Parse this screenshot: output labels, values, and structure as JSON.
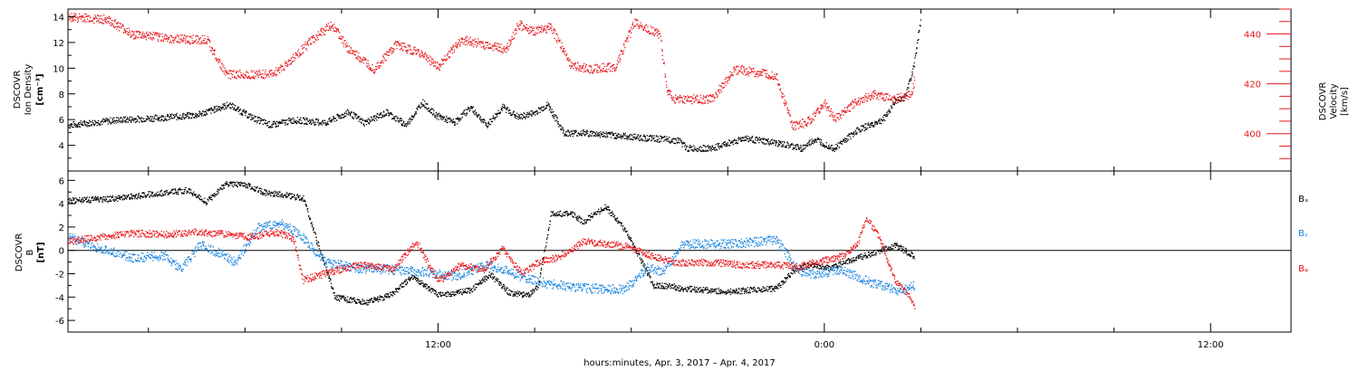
{
  "x_axis": {
    "label": "hours:minutes, Apr.  3, 2017 – Apr.  4, 2017",
    "range_hours": [
      -23.5,
      14.5
    ],
    "tick_labels": [
      {
        "hour": -12,
        "text": "12:00"
      },
      {
        "hour": 0,
        "text": "0:00"
      },
      {
        "hour": 12,
        "text": "12:00"
      }
    ]
  },
  "colors": {
    "black": "#000000",
    "red": "#e8191e",
    "blue": "#1c86e0"
  },
  "panels": {
    "top": {
      "left_label": [
        "DSCOVR",
        "Ion  Density",
        "[cm⁻³]"
      ],
      "right_label": [
        "DSCOVR",
        "Velocity",
        "[km/s]"
      ],
      "left_ylim": [
        2,
        14.6
      ],
      "left_ticks": [
        4,
        6,
        8,
        10,
        12,
        14
      ],
      "right_ylim": [
        385,
        450
      ],
      "right_ticks": [
        400,
        420,
        440
      ]
    },
    "bottom": {
      "left_label": [
        "DSCOVR",
        "B",
        "[nT]"
      ],
      "ylim": [
        -7,
        6.8
      ],
      "ticks": [
        -6,
        -4,
        -2,
        0,
        2,
        4,
        6
      ],
      "legend": [
        "Bₓ",
        "Bᵧ",
        "Bᵩ"
      ]
    }
  },
  "chart_data": [
    {
      "type": "scatter",
      "panel": "top",
      "xlabel": "hours:minutes, Apr.  3, 2017 – Apr.  4, 2017",
      "x_units": "hours relative to 0:00 Apr. 4, 2017",
      "ylim_left": [
        2,
        14.6
      ],
      "ylim_right": [
        385,
        450
      ],
      "series": [
        {
          "axis": "left",
          "color": "#000000",
          "noise": 0.25,
          "x": [
            -23.5,
            -22,
            -20.5,
            -19.5,
            -18.5,
            -17.8,
            -17.2,
            -16.5,
            -15.5,
            -14.8,
            -14.3,
            -13.6,
            -13.0,
            -12.5,
            -12.1,
            -11.5,
            -11.0,
            -10.5,
            -10.0,
            -9.5,
            -9.0,
            -8.6,
            -8.1,
            -7.5,
            -6.5,
            -5.5,
            -4.5,
            -4.3,
            -3.5,
            -2.5,
            -1.5,
            -0.7,
            -0.3,
            0.3,
            1.0,
            1.8,
            2.2,
            2.5,
            2.75,
            3.0
          ],
          "y": [
            5.6,
            6.0,
            6.2,
            6.4,
            7.2,
            6.2,
            5.6,
            6.0,
            5.8,
            6.6,
            5.8,
            6.6,
            5.6,
            7.4,
            6.4,
            5.8,
            7.0,
            5.6,
            7.0,
            6.2,
            6.6,
            7.2,
            5.0,
            5.0,
            4.8,
            4.6,
            4.4,
            3.8,
            3.8,
            4.6,
            4.2,
            3.8,
            4.5,
            3.8,
            5.2,
            6.0,
            7.5,
            7.8,
            10.0,
            14.0
          ]
        },
        {
          "axis": "right",
          "color": "#e8191e",
          "noise": 1.8,
          "x": [
            -23.5,
            -22.3,
            -21.5,
            -20.0,
            -19.2,
            -18.6,
            -17.2,
            -16.7,
            -16.0,
            -15.3,
            -14.8,
            -14.0,
            -13.3,
            -12.5,
            -12.0,
            -11.3,
            -10.6,
            -9.9,
            -9.5,
            -9.0,
            -8.5,
            -7.9,
            -7.3,
            -6.5,
            -5.9,
            -5.5,
            -5.1,
            -4.9,
            -4.7,
            -3.5,
            -2.8,
            -2.2,
            -1.5,
            -1.0,
            -0.5,
            0.0,
            0.3,
            1.0,
            1.5,
            2.2,
            2.7,
            2.8
          ],
          "y": [
            447,
            446,
            440,
            438,
            438,
            424,
            424,
            428,
            437,
            444,
            434,
            426,
            436,
            432,
            427,
            438,
            436,
            434,
            444,
            441,
            443,
            428,
            426,
            427,
            445,
            442,
            440,
            417,
            414,
            414,
            426,
            425,
            423,
            403,
            405,
            412,
            406,
            413,
            416,
            414,
            416,
            423
          ]
        }
      ]
    },
    {
      "type": "scatter",
      "panel": "bottom",
      "ylim": [
        -7,
        6.8
      ],
      "series": [
        {
          "name": "Bₓ",
          "color": "#000000",
          "noise": 0.25,
          "x": [
            -23.5,
            -22,
            -20.5,
            -19.8,
            -19.2,
            -18.6,
            -17.9,
            -17.4,
            -16.8,
            -16.2,
            -15.2,
            -14.2,
            -13.5,
            -12.8,
            -12.0,
            -11.0,
            -10.4,
            -9.8,
            -9.2,
            -8.9,
            -8.5,
            -7.9,
            -7.5,
            -6.8,
            -6.2,
            -5.3,
            -4.7,
            -4.6,
            -3.0,
            -1.5,
            -1.0,
            -0.5,
            0.2,
            0.8,
            1.5,
            2.2,
            2.8
          ],
          "y": [
            4.3,
            4.5,
            5.0,
            5.2,
            4.2,
            5.8,
            5.6,
            5.0,
            4.8,
            4.5,
            -4.0,
            -4.4,
            -3.8,
            -2.2,
            -3.8,
            -3.4,
            -2.0,
            -3.6,
            -3.8,
            -3.0,
            3.2,
            3.2,
            2.5,
            3.8,
            1.8,
            -3.0,
            -3.0,
            -3.2,
            -3.5,
            -3.2,
            -1.8,
            -1.2,
            -1.5,
            -0.8,
            -0.2,
            0.5,
            -0.5
          ]
        },
        {
          "name": "Bᵧ",
          "color": "#1c86e0",
          "noise": 0.4,
          "x": [
            -23.5,
            -22.5,
            -21.5,
            -20.5,
            -20.0,
            -19.4,
            -18.8,
            -18.3,
            -17.6,
            -16.9,
            -16.3,
            -15.5,
            -14.5,
            -13.5,
            -12.5,
            -11.5,
            -10.5,
            -9.8,
            -9.2,
            -8.6,
            -7.5,
            -6.2,
            -5.5,
            -5.0,
            -4.4,
            -3.0,
            -2.0,
            -1.5,
            -0.8,
            -0.3,
            0.5,
            1.0,
            1.5,
            2.3,
            2.8
          ],
          "y": [
            1.2,
            0.2,
            -0.6,
            -0.4,
            -1.6,
            0.5,
            -0.2,
            -1.0,
            2.0,
            2.4,
            1.4,
            -1.0,
            -1.5,
            -1.6,
            -1.8,
            -2.2,
            -1.2,
            -1.8,
            -2.4,
            -2.8,
            -3.2,
            -3.3,
            -1.4,
            -1.8,
            0.6,
            0.6,
            0.8,
            1.0,
            -1.8,
            -2.0,
            -1.6,
            -2.2,
            -2.8,
            -3.4,
            -3.0
          ]
        },
        {
          "name": "Bᵩ",
          "color": "#e8191e",
          "noise": 0.3,
          "x": [
            -23.5,
            -22.5,
            -21.5,
            -20.5,
            -19.5,
            -18.5,
            -17.8,
            -17.0,
            -16.5,
            -16.2,
            -15.6,
            -14.8,
            -14.2,
            -13.4,
            -12.7,
            -12.0,
            -11.3,
            -10.6,
            -10.0,
            -9.4,
            -8.8,
            -8.3,
            -7.5,
            -6.2,
            -5.2,
            -4.6,
            -3.5,
            -2.5,
            -1.5,
            -0.8,
            -0.4,
            0.0,
            0.6,
            1.0,
            1.3,
            1.7,
            2.2,
            2.6,
            2.8
          ],
          "y": [
            0.8,
            1.2,
            1.5,
            1.4,
            1.6,
            1.4,
            1.2,
            1.6,
            1.0,
            -2.5,
            -2.0,
            -1.4,
            -1.2,
            -1.6,
            0.8,
            -2.6,
            -1.2,
            -1.6,
            0.2,
            -2.0,
            -0.8,
            -0.6,
            0.8,
            0.4,
            -0.6,
            -1.0,
            -1.0,
            -1.2,
            -1.2,
            -1.4,
            -1.0,
            -0.8,
            -0.4,
            0.5,
            2.8,
            1.2,
            -2.6,
            -3.8,
            -4.8
          ]
        }
      ]
    }
  ]
}
